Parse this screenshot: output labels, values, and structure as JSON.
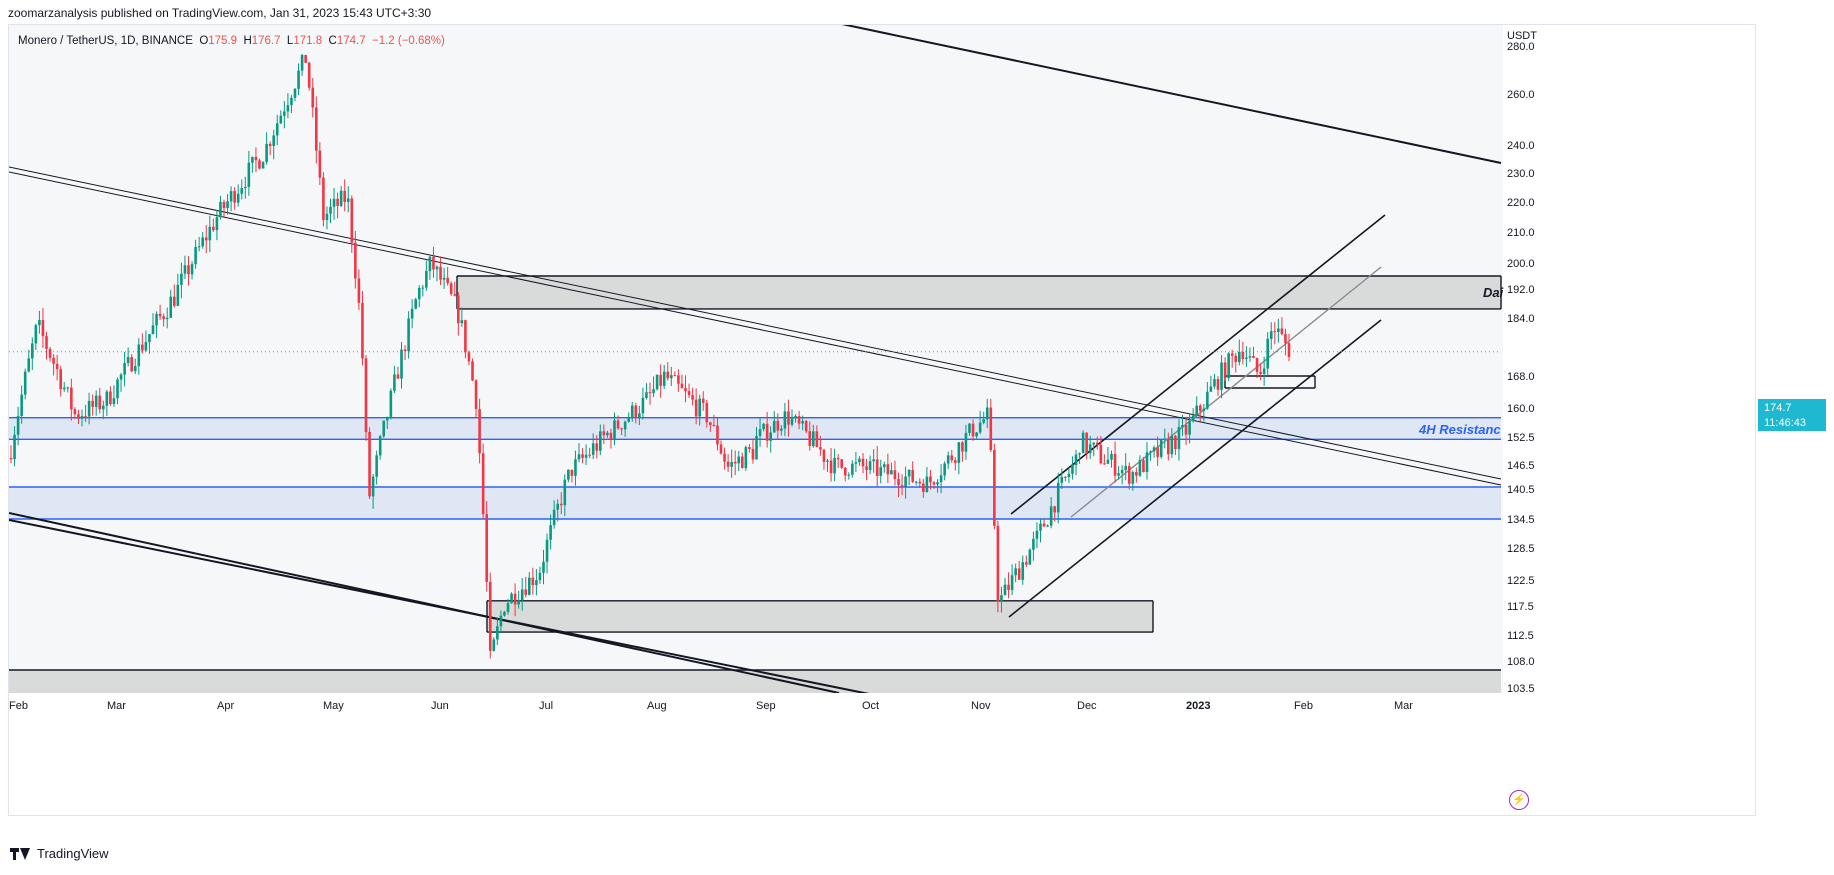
{
  "header": {
    "published_by": "zoomarzanalysis published on TradingView.com, Jan 31, 2023 15:43 UTC+3:30"
  },
  "legend": {
    "symbol": "Monero / TetherUS, 1D, BINANCE",
    "open_label": "O",
    "open": "175.9",
    "high_label": "H",
    "high": "176.7",
    "low_label": "L",
    "low": "171.8",
    "close_label": "C",
    "close": "174.7",
    "change": "−1.2 (−0.68%)"
  },
  "price_axis": {
    "currency": "USDT",
    "current_price": "174.7",
    "countdown": "11:46:43"
  },
  "annotations": {
    "daily_zone_label": "Dai",
    "h4_resistance_label": "4H Resistanc"
  },
  "footer": {
    "brand": "TradingView"
  },
  "colors": {
    "up": "#089981",
    "down": "#f23645",
    "zone_blue": "#2962ff",
    "zone_fill_blue": "#dde3f3",
    "zone_fill_gray": "#d6d6d6",
    "price_tag": "#1fb8d1"
  },
  "chart_data": {
    "type": "candlestick",
    "symbol": "Monero / TetherUS",
    "interval": "1D",
    "exchange": "BINANCE",
    "x_ticks": [
      "Feb",
      "Mar",
      "Apr",
      "May",
      "Jun",
      "Jul",
      "Aug",
      "Sep",
      "Oct",
      "Nov",
      "Dec",
      "2023",
      "Feb",
      "Mar"
    ],
    "y_ticks": [
      103.5,
      108.0,
      112.5,
      117.5,
      122.5,
      128.5,
      134.5,
      140.5,
      146.5,
      152.5,
      160.0,
      168.0,
      174.7,
      184.0,
      192.0,
      200.0,
      210.0,
      220.0,
      230.0,
      240.0,
      260.0,
      280.0
    ],
    "ylim": [
      101,
      283
    ],
    "anchors": [
      {
        "date": "Feb",
        "price": 148
      },
      {
        "date": "Feb 10",
        "price": 182
      },
      {
        "date": "Feb 22",
        "price": 158
      },
      {
        "date": "Mar",
        "price": 162
      },
      {
        "date": "Mar 20",
        "price": 190
      },
      {
        "date": "Apr",
        "price": 215
      },
      {
        "date": "Apr 15",
        "price": 238
      },
      {
        "date": "Apr 27",
        "price": 275
      },
      {
        "date": "May 8",
        "price": 222
      },
      {
        "date": "May",
        "price": 215
      },
      {
        "date": "May 12",
        "price": 180
      },
      {
        "date": "May 14",
        "price": 138
      },
      {
        "date": "May 28",
        "price": 190
      },
      {
        "date": "Jun",
        "price": 200
      },
      {
        "date": "Jun 9",
        "price": 185
      },
      {
        "date": "Jun 14",
        "price": 162
      },
      {
        "date": "Jun 18",
        "price": 108
      },
      {
        "date": "Jun 22",
        "price": 118
      },
      {
        "date": "Jul",
        "price": 124
      },
      {
        "date": "Jul 10",
        "price": 145
      },
      {
        "date": "Aug",
        "price": 162
      },
      {
        "date": "Aug 6",
        "price": 168
      },
      {
        "date": "Aug 18",
        "price": 158
      },
      {
        "date": "Aug 24",
        "price": 146
      },
      {
        "date": "Sep",
        "price": 150
      },
      {
        "date": "Sep 10",
        "price": 158
      },
      {
        "date": "Sep",
        "price": 152
      },
      {
        "date": "Sep 24",
        "price": 146
      },
      {
        "date": "Oct",
        "price": 146
      },
      {
        "date": "Oct 20",
        "price": 142
      },
      {
        "date": "Nov",
        "price": 154
      },
      {
        "date": "Nov 6",
        "price": 158
      },
      {
        "date": "Nov 9",
        "price": 118
      },
      {
        "date": "Nov 20",
        "price": 130
      },
      {
        "date": "Dec",
        "price": 148
      },
      {
        "date": "Dec",
        "price": 152
      },
      {
        "date": "Dec 16",
        "price": 144
      },
      {
        "date": "2023",
        "price": 154
      },
      {
        "date": "Jan 12",
        "price": 170
      },
      {
        "date": "Jan 17",
        "price": 176
      },
      {
        "date": "Jan 22",
        "price": 168
      },
      {
        "date": "Jan 26",
        "price": 182
      },
      {
        "date": "Jan 31",
        "price": 174.7
      }
    ],
    "zones": [
      {
        "name": "daily-resistance",
        "from": 186.5,
        "to": 196
      },
      {
        "name": "4h-resistance",
        "from": 152,
        "to": 157.5
      },
      {
        "name": "support-band",
        "from": 134.5,
        "to": 141
      },
      {
        "name": "demand-zone",
        "from": 113,
        "to": 118.5
      },
      {
        "name": "bottom-zone",
        "from": 101,
        "to": 106.5
      },
      {
        "name": "breakout-box",
        "from": 165,
        "to": 168
      }
    ]
  }
}
